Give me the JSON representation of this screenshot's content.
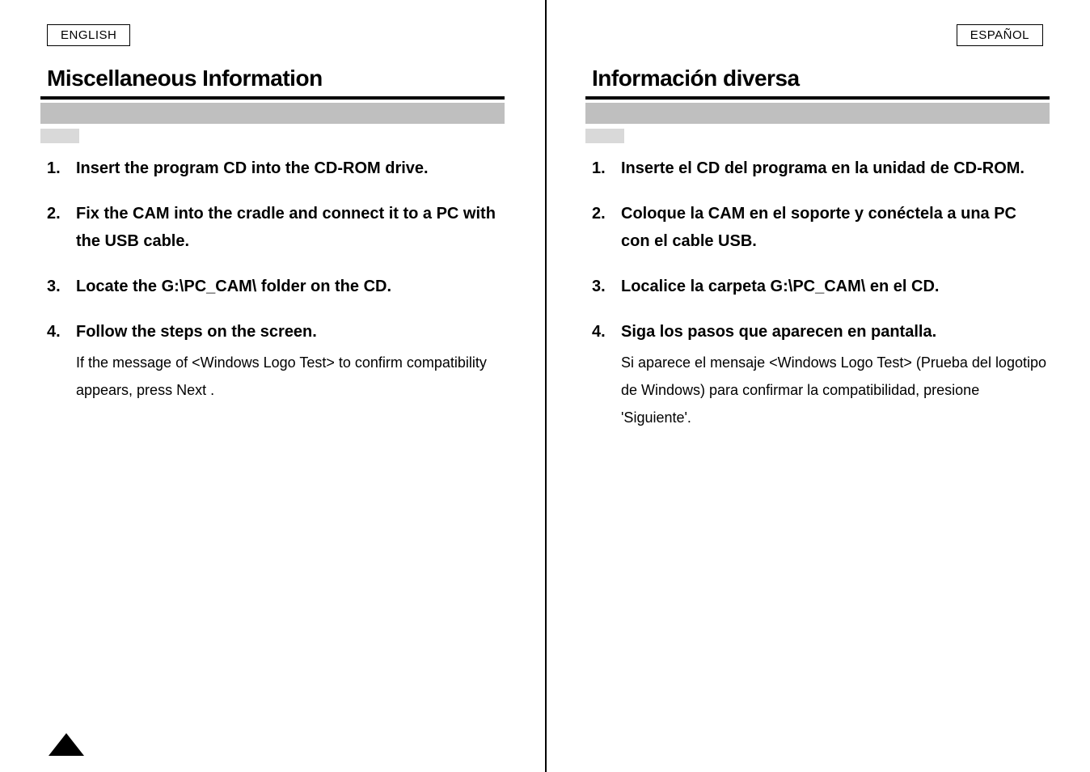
{
  "left": {
    "langTag": "ENGLISH",
    "sectionTitle": "Miscellaneous Information",
    "steps": [
      {
        "num": "1.",
        "main": "Insert the program CD into the CD-ROM drive."
      },
      {
        "num": "2.",
        "main": "Fix the CAM into the cradle and connect it to a PC with the USB cable."
      },
      {
        "num": "3.",
        "main": "Locate the G:\\PC_CAM\\ folder on the CD."
      },
      {
        "num": "4.",
        "main": "Follow the steps on the screen.",
        "desc": "If the message of <Windows Logo Test> to confirm compatibility appears, press  Next ."
      }
    ]
  },
  "right": {
    "langTag": "ESPAÑOL",
    "sectionTitle": "Información diversa",
    "steps": [
      {
        "num": "1.",
        "main": "Inserte el CD del programa en la unidad de CD-ROM."
      },
      {
        "num": "2.",
        "main": "Coloque la CAM en el soporte y conéctela a una PC con el cable USB."
      },
      {
        "num": "3.",
        "main": "Localice la carpeta G:\\PC_CAM\\ en el CD."
      },
      {
        "num": "4.",
        "main": "Siga los pasos que aparecen en pantalla.",
        "desc": "Si aparece el mensaje <Windows Logo Test> (Prueba del logotipo de Windows) para confirmar la compatibilidad, presione 'Siguiente'."
      }
    ]
  },
  "colors": {
    "greyBar": "#bfbfbf",
    "subGrey": "#d9d9d9",
    "text": "#000000",
    "bg": "#ffffff"
  }
}
